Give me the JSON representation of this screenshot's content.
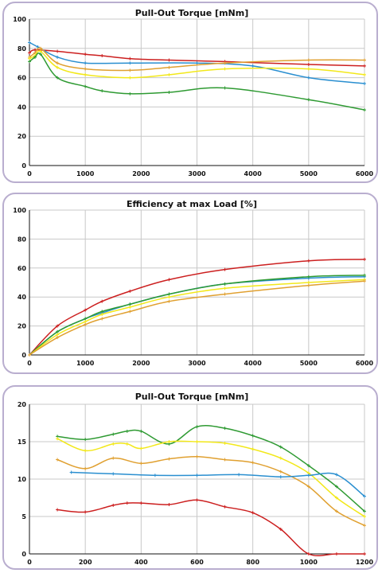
{
  "chart_data": [
    {
      "type": "line",
      "title": "Pull-Out Torque [mNm]",
      "xlim": [
        0,
        6000
      ],
      "ylim": [
        0,
        100
      ],
      "xticks": [
        0,
        1000,
        2000,
        3000,
        4000,
        5000,
        6000
      ],
      "yticks": [
        0,
        20,
        40,
        60,
        80,
        100
      ],
      "grid": true,
      "series": [
        {
          "color": "#cc1f1f",
          "x": [
            0,
            100,
            500,
            1000,
            1300,
            1800,
            2500,
            3500,
            5000,
            6000
          ],
          "y": [
            77,
            79,
            78,
            76,
            75,
            73,
            72,
            71,
            69,
            68
          ]
        },
        {
          "color": "#2a8fd0",
          "x": [
            0,
            150,
            500,
            1000,
            1800,
            3000,
            4000,
            5000,
            6000
          ],
          "y": [
            84,
            81,
            74,
            70,
            70,
            70,
            68,
            60,
            56
          ]
        },
        {
          "color": "#e0a030",
          "x": [
            0,
            100,
            200,
            500,
            1000,
            1800,
            2500,
            3500,
            5000,
            6000
          ],
          "y": [
            74,
            77,
            80,
            70,
            66,
            65,
            67,
            70,
            72,
            72
          ]
        },
        {
          "color": "#f2e81a",
          "x": [
            0,
            100,
            200,
            500,
            1000,
            1800,
            2500,
            3500,
            5000,
            6000
          ],
          "y": [
            73,
            75,
            78,
            67,
            62,
            60,
            62,
            66,
            66,
            62
          ]
        },
        {
          "color": "#2e9a32",
          "x": [
            0,
            100,
            200,
            500,
            1000,
            1300,
            1800,
            2500,
            3500,
            5000,
            6000
          ],
          "y": [
            71,
            74,
            76,
            60,
            54,
            51,
            49,
            50,
            53,
            45,
            38
          ]
        }
      ]
    },
    {
      "type": "line",
      "title": "Efficiency at max Load [%]",
      "xlim": [
        0,
        6000
      ],
      "ylim": [
        0,
        100
      ],
      "xticks": [
        0,
        1000,
        2000,
        3000,
        4000,
        5000,
        6000
      ],
      "yticks": [
        0,
        20,
        40,
        60,
        80,
        100
      ],
      "grid": true,
      "series": [
        {
          "color": "#cc1f1f",
          "x": [
            0,
            500,
            1000,
            1300,
            1800,
            2500,
            3500,
            5000,
            6000
          ],
          "y": [
            0,
            20,
            31,
            37,
            44,
            52,
            59,
            65,
            66
          ]
        },
        {
          "color": "#2a8fd0",
          "x": [
            0,
            500,
            1000,
            1300,
            1800,
            2500,
            3500,
            5000,
            6000
          ],
          "y": [
            0,
            16,
            25,
            29,
            35,
            42,
            49,
            53,
            54
          ]
        },
        {
          "color": "#2e9a32",
          "x": [
            0,
            500,
            1000,
            1300,
            1800,
            2500,
            3500,
            5000,
            6000
          ],
          "y": [
            0,
            16,
            25,
            30,
            35,
            42,
            49,
            54,
            55
          ]
        },
        {
          "color": "#f2e81a",
          "x": [
            0,
            500,
            1000,
            1300,
            1800,
            2500,
            3500,
            5000,
            6000
          ],
          "y": [
            0,
            14,
            23,
            28,
            33,
            40,
            46,
            50,
            52
          ]
        },
        {
          "color": "#e0a030",
          "x": [
            0,
            500,
            1000,
            1300,
            1800,
            2500,
            3500,
            5000,
            6000
          ],
          "y": [
            0,
            12,
            21,
            25,
            30,
            37,
            42,
            48,
            51
          ]
        }
      ]
    },
    {
      "type": "line",
      "title": "Pull-Out Torque [mNm]",
      "xlim": [
        0,
        1200
      ],
      "ylim": [
        0,
        20
      ],
      "xticks": [
        0,
        200,
        400,
        600,
        800,
        1000,
        1200
      ],
      "yticks": [
        0,
        5,
        10,
        15,
        20
      ],
      "grid": true,
      "series": [
        {
          "color": "#2e9a32",
          "x": [
            100,
            200,
            300,
            350,
            400,
            500,
            600,
            700,
            800,
            900,
            1000,
            1100,
            1200
          ],
          "y": [
            15.7,
            15.3,
            16.0,
            16.4,
            16.4,
            14.7,
            17.0,
            16.8,
            15.8,
            14.3,
            11.8,
            9.0,
            5.7
          ]
        },
        {
          "color": "#f2e81a",
          "x": [
            100,
            200,
            300,
            350,
            400,
            500,
            600,
            700,
            800,
            900,
            1000,
            1100,
            1200
          ],
          "y": [
            15.4,
            13.8,
            14.7,
            14.7,
            14.1,
            15.0,
            15.0,
            14.8,
            14.0,
            12.8,
            10.8,
            7.5,
            5.0
          ]
        },
        {
          "color": "#e0a030",
          "x": [
            100,
            200,
            300,
            400,
            500,
            600,
            700,
            800,
            900,
            1000,
            1100,
            1200
          ],
          "y": [
            12.6,
            11.4,
            12.8,
            12.1,
            12.7,
            13.0,
            12.6,
            12.2,
            11.0,
            9.0,
            5.7,
            3.8
          ]
        },
        {
          "color": "#2a8fd0",
          "x": [
            150,
            300,
            450,
            600,
            750,
            900,
            1000,
            1100,
            1200
          ],
          "y": [
            10.9,
            10.7,
            10.5,
            10.5,
            10.6,
            10.3,
            10.5,
            10.6,
            7.7
          ]
        },
        {
          "color": "#cc1f1f",
          "x": [
            100,
            200,
            300,
            350,
            400,
            500,
            600,
            700,
            800,
            900,
            1000,
            1100,
            1200
          ],
          "y": [
            5.9,
            5.6,
            6.5,
            6.8,
            6.8,
            6.6,
            7.2,
            6.3,
            5.5,
            3.3,
            0,
            0,
            0
          ]
        }
      ]
    }
  ]
}
